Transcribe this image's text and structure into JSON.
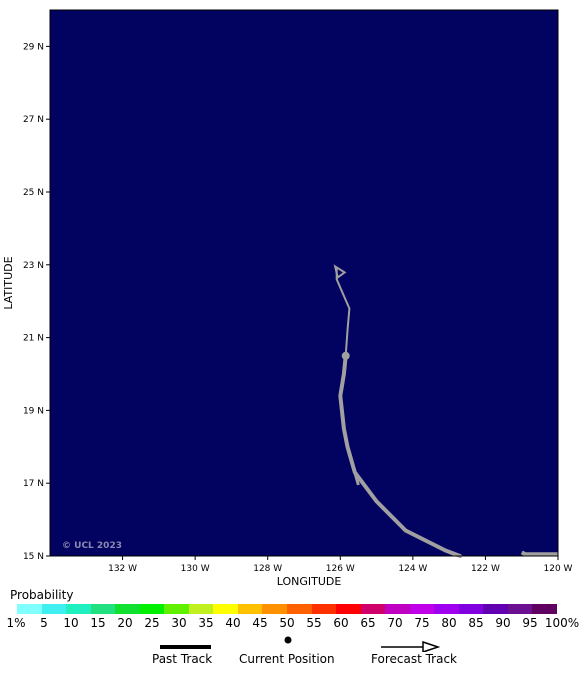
{
  "axes": {
    "xlabel": "LONGITUDE",
    "ylabel": "LATITUDE",
    "xlim": [
      -134,
      -120
    ],
    "ylim": [
      15,
      30
    ],
    "xticks": [
      {
        "value": -132,
        "label": "132 W"
      },
      {
        "value": -130,
        "label": "130 W"
      },
      {
        "value": -128,
        "label": "128 W"
      },
      {
        "value": -126,
        "label": "126 W"
      },
      {
        "value": -124,
        "label": "124 W"
      },
      {
        "value": -122,
        "label": "122 W"
      },
      {
        "value": -120,
        "label": "120 W"
      }
    ],
    "yticks": [
      {
        "value": 15,
        "label": "15 N"
      },
      {
        "value": 17,
        "label": "17 N"
      },
      {
        "value": 19,
        "label": "19 N"
      },
      {
        "value": 21,
        "label": "21 N"
      },
      {
        "value": 23,
        "label": "23 N"
      },
      {
        "value": 25,
        "label": "25 N"
      },
      {
        "value": 27,
        "label": "27 N"
      },
      {
        "value": 29,
        "label": "29 N"
      }
    ]
  },
  "colors": {
    "ocean": "#020260",
    "track": "#a0a0a0"
  },
  "copyright": "© UCL 2023",
  "past_track": [
    [
      -121.0,
      15.1
    ],
    [
      -120.9,
      15.05
    ],
    [
      -120.0,
      15.05
    ]
  ],
  "past_track_main": [
    [
      -122.7,
      15.0
    ],
    [
      -123.1,
      15.15
    ],
    [
      -124.2,
      15.7
    ],
    [
      -125.0,
      16.5
    ],
    [
      -125.6,
      17.3
    ],
    [
      -125.8,
      18.0
    ],
    [
      -125.9,
      18.5
    ],
    [
      -126.0,
      19.4
    ],
    [
      -125.9,
      20.0
    ],
    [
      -125.85,
      20.5
    ]
  ],
  "current_position": [
    -125.85,
    20.5
  ],
  "forecast_track": [
    [
      -125.85,
      20.5
    ],
    [
      -125.8,
      21.2
    ],
    [
      -125.75,
      21.8
    ],
    [
      -126.1,
      22.6
    ],
    [
      -126.1,
      22.9
    ]
  ],
  "legend": {
    "title": "Probability",
    "colors": [
      "#80ffff",
      "#40f0f0",
      "#20f0c0",
      "#20e080",
      "#10e030",
      "#00f000",
      "#60f000",
      "#c0f020",
      "#ffff00",
      "#ffc000",
      "#ff9000",
      "#ff6000",
      "#ff3000",
      "#ff0000",
      "#d0006a",
      "#c000c0",
      "#c000e8",
      "#a000f0",
      "#8000e0",
      "#6000b0",
      "#6a1090",
      "#600060"
    ],
    "labels": [
      "1%",
      "5",
      "10",
      "15",
      "20",
      "25",
      "30",
      "35",
      "40",
      "45",
      "50",
      "55",
      "60",
      "65",
      "70",
      "75",
      "80",
      "85",
      "90",
      "95",
      "100%"
    ]
  },
  "key": {
    "past_track": "Past Track",
    "current_position": "Current Position",
    "forecast_track": "Forecast Track"
  }
}
